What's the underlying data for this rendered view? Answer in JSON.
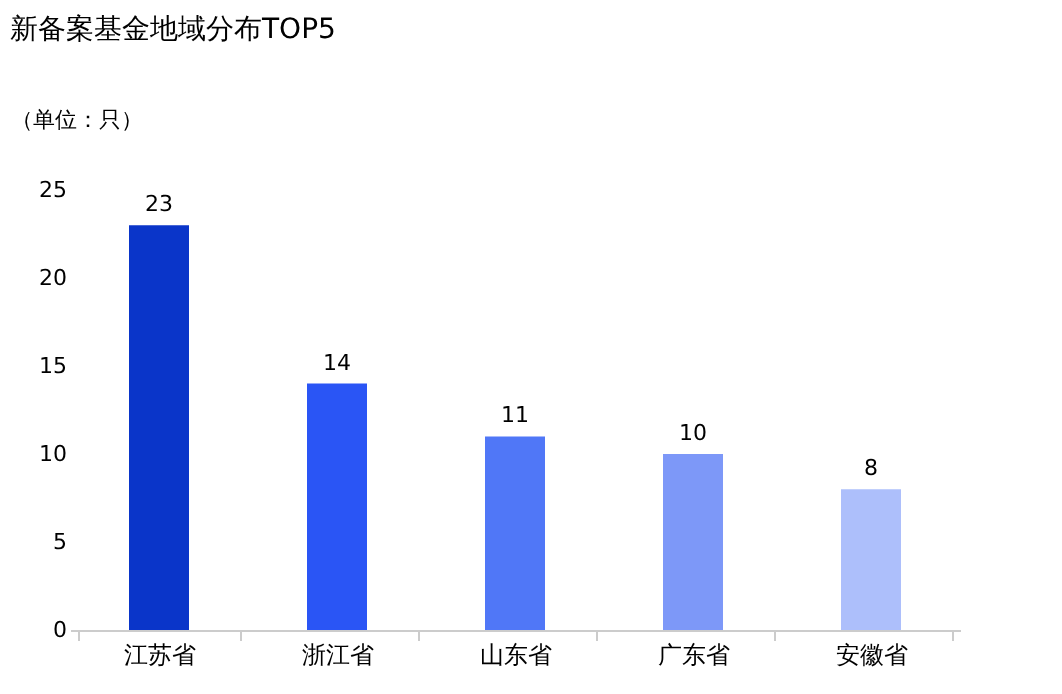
{
  "chart_data": {
    "type": "bar",
    "title": "新备案基金地域分布TOP5",
    "ylabel": "（单位：只）",
    "categories": [
      "江苏省",
      "浙江省",
      "山东省",
      "广东省",
      "安徽省"
    ],
    "values": [
      23,
      14,
      11,
      10,
      8
    ],
    "colors": [
      "#0a35c9",
      "#2a55f5",
      "#5077f7",
      "#7d98f8",
      "#adbffb"
    ],
    "ylim": [
      0,
      25
    ],
    "yticks": [
      0,
      5,
      10,
      15,
      20,
      25
    ],
    "grid": false,
    "data_labels": true
  }
}
